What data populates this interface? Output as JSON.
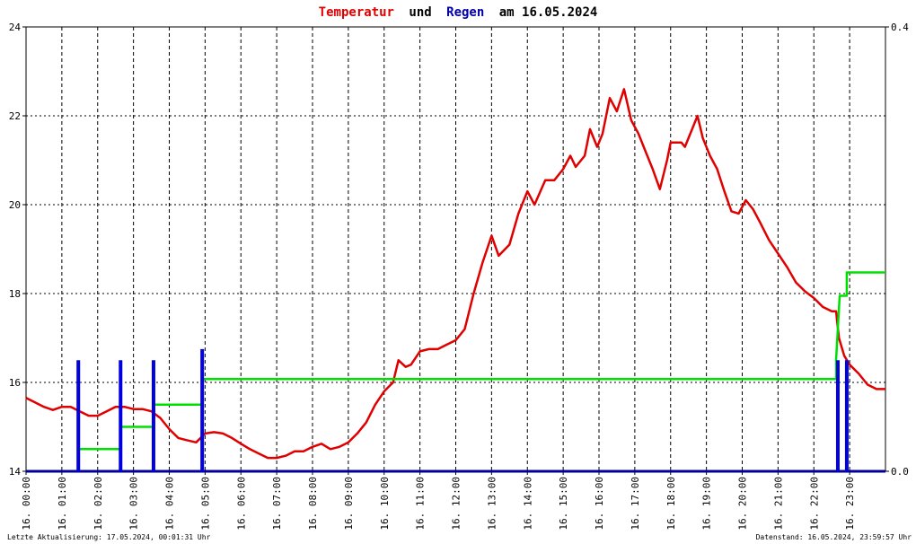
{
  "chart_data": {
    "type": "line",
    "title": [
      "Temperatur",
      "und",
      "Regen",
      "am 16.05.2024"
    ],
    "title_colors": [
      "#e00000",
      "#000000",
      "#0000aa",
      "#000000"
    ],
    "annotations": [
      "Letzte Aktualisierung: 17.05.2024, 00:01:31 Uhr",
      "Datenstand: 16.05.2024, 23:59:57 Uhr"
    ],
    "xlim": [
      0,
      24
    ],
    "xticks": [
      {
        "value": 0,
        "label": "16. 00:00"
      },
      {
        "value": 1,
        "label": "16. 01:00"
      },
      {
        "value": 2,
        "label": "16. 02:00"
      },
      {
        "value": 3,
        "label": "16. 03:00"
      },
      {
        "value": 4,
        "label": "16. 04:00"
      },
      {
        "value": 5,
        "label": "16. 05:00"
      },
      {
        "value": 6,
        "label": "16. 06:00"
      },
      {
        "value": 7,
        "label": "16. 07:00"
      },
      {
        "value": 8,
        "label": "16. 08:00"
      },
      {
        "value": 9,
        "label": "16. 09:00"
      },
      {
        "value": 10,
        "label": "16. 10:00"
      },
      {
        "value": 11,
        "label": "16. 11:00"
      },
      {
        "value": 12,
        "label": "16. 12:00"
      },
      {
        "value": 13,
        "label": "16. 13:00"
      },
      {
        "value": 14,
        "label": "16. 14:00"
      },
      {
        "value": 15,
        "label": "16. 15:00"
      },
      {
        "value": 16,
        "label": "16. 16:00"
      },
      {
        "value": 17,
        "label": "16. 17:00"
      },
      {
        "value": 18,
        "label": "16. 18:00"
      },
      {
        "value": 19,
        "label": "16. 19:00"
      },
      {
        "value": 20,
        "label": "16. 20:00"
      },
      {
        "value": 21,
        "label": "16. 21:00"
      },
      {
        "value": 22,
        "label": "16. 22:00"
      },
      {
        "value": 23,
        "label": "16. 23:00"
      }
    ],
    "ylim": [
      14,
      24
    ],
    "yticks": [
      14,
      16,
      18,
      20,
      22,
      24
    ],
    "y2lim": [
      0,
      0.4
    ],
    "y2ticks": [
      {
        "value": 0,
        "label": "0.0"
      },
      {
        "value": 0.4,
        "label": "0.4"
      }
    ],
    "grid": true,
    "series": [
      {
        "type": "line",
        "color": "#e00000",
        "x": [
          0,
          0.25,
          0.5,
          0.75,
          1,
          1.25,
          1.5,
          1.75,
          2,
          2.25,
          2.5,
          2.75,
          3,
          3.25,
          3.5,
          3.75,
          4,
          4.25,
          4.5,
          4.75,
          5,
          5.25,
          5.5,
          5.75,
          6,
          6.25,
          6.5,
          6.75,
          7,
          7.25,
          7.5,
          7.75,
          8,
          8.25,
          8.5,
          8.75,
          9,
          9.25,
          9.5,
          9.75,
          10,
          10.25,
          10.4,
          10.6,
          10.75,
          11,
          11.25,
          11.5,
          11.75,
          12,
          12.25,
          12.5,
          12.75,
          13,
          13.2,
          13.5,
          13.75,
          14,
          14.2,
          14.5,
          14.75,
          15,
          15.2,
          15.35,
          15.6,
          15.75,
          15.95,
          16.1,
          16.3,
          16.5,
          16.7,
          16.9,
          17.1,
          17.3,
          17.5,
          17.7,
          17.9,
          18,
          18.3,
          18.4,
          18.6,
          18.75,
          18.9,
          19.1,
          19.3,
          19.5,
          19.7,
          19.9,
          20.1,
          20.3,
          20.5,
          20.75,
          21,
          21.25,
          21.5,
          21.75,
          22,
          22.25,
          22.5,
          22.62,
          22.7,
          22.85,
          23,
          23.25,
          23.5,
          23.75,
          24
        ],
        "values": [
          15.65,
          15.55,
          15.45,
          15.38,
          15.45,
          15.45,
          15.35,
          15.25,
          15.25,
          15.35,
          15.45,
          15.45,
          15.4,
          15.4,
          15.35,
          15.2,
          14.95,
          14.75,
          14.7,
          14.65,
          14.85,
          14.88,
          14.85,
          14.75,
          14.62,
          14.5,
          14.4,
          14.3,
          14.3,
          14.35,
          14.45,
          14.45,
          14.55,
          14.62,
          14.5,
          14.55,
          14.65,
          14.85,
          15.1,
          15.5,
          15.8,
          16.0,
          16.5,
          16.35,
          16.4,
          16.7,
          16.75,
          16.75,
          16.85,
          16.95,
          17.2,
          18.0,
          18.7,
          19.3,
          18.85,
          19.1,
          19.8,
          20.3,
          20.0,
          20.55,
          20.55,
          20.8,
          21.1,
          20.85,
          21.1,
          21.7,
          21.3,
          21.6,
          22.4,
          22.1,
          22.6,
          21.9,
          21.6,
          21.2,
          20.8,
          20.35,
          21.0,
          21.4,
          21.4,
          21.3,
          21.7,
          22.0,
          21.5,
          21.1,
          20.8,
          20.3,
          19.85,
          19.8,
          20.1,
          19.9,
          19.6,
          19.2,
          18.9,
          18.6,
          18.25,
          18.05,
          17.9,
          17.7,
          17.6,
          17.6,
          17.0,
          16.6,
          16.4,
          16.2,
          15.95,
          15.85,
          15.85
        ]
      },
      {
        "type": "line",
        "axis": "y2",
        "color": "#00e000",
        "x": [
          1.5,
          2.64,
          2.64,
          3.56,
          3.56,
          4.92,
          4.92,
          22.62,
          22.62,
          22.72,
          22.92,
          22.92,
          24
        ],
        "values": [
          0.02,
          0.02,
          0.04,
          0.04,
          0.06,
          0.06,
          0.083,
          0.083,
          0.1,
          0.158,
          0.158,
          0.179,
          0.179
        ]
      },
      {
        "type": "bar",
        "axis": "y2",
        "color": "#0000e0",
        "x": [
          1.46,
          2.64,
          3.56,
          4.92,
          22.67,
          22.92
        ],
        "values": [
          0.1,
          0.1,
          0.1,
          0.11,
          0.1,
          0.1
        ]
      }
    ]
  }
}
